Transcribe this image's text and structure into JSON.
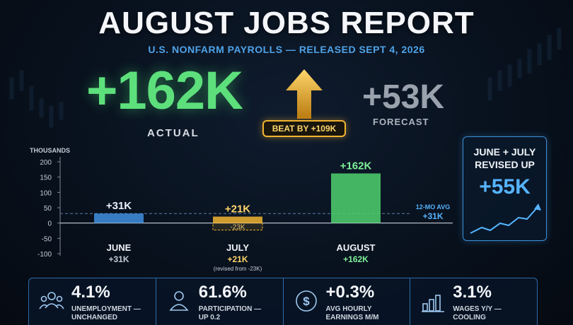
{
  "title": "AUGUST JOBS REPORT",
  "subtitle": "U.S. NONFARM PAYROLLS — RELEASED SEPT 4, 2026",
  "headline": {
    "actual_value": "+162K",
    "actual_label": "ACTUAL",
    "forecast_value": "+53K",
    "forecast_label": "FORECAST",
    "beat_badge": "BEAT BY +109K"
  },
  "colors": {
    "green": "#5de07c",
    "blue": "#4fa3e8",
    "gold": "#f2b431",
    "gray": "#9aa2ad"
  },
  "chart_data": {
    "type": "bar",
    "ylabel": "THOUSANDS",
    "ylim": [
      -100,
      200
    ],
    "yticks": [
      "200",
      "150",
      "100",
      "50",
      "0",
      "-50",
      "-100"
    ],
    "grid": false,
    "categories": [
      "JUNE",
      "JULY",
      "AUGUST"
    ],
    "values": [
      31,
      21,
      162
    ],
    "bar_labels": [
      "+31K",
      "+21K",
      "+162K"
    ],
    "category_sublabels": [
      "+31K",
      "+21K",
      "+162K"
    ],
    "bar_colors": [
      "#3f8fe0",
      "#f2b431",
      "#4fd16f"
    ],
    "prior_value_july": -23,
    "prior_label_july": "-23K",
    "revision_note_july": "(revised from -23K)",
    "reference_line": {
      "value": 31,
      "label_line1": "12-MO AVG",
      "label_line2": "+31K"
    }
  },
  "revision_box": {
    "title_line1": "JUNE + JULY",
    "title_line2": "REVISED UP",
    "value": "+55K",
    "trend_icon": "rising-trend-arrow-icon"
  },
  "stats": [
    {
      "icon": "people-group-icon",
      "value": "4.1%",
      "label_line1": "UNEMPLOYMENT —",
      "label_line2": "UNCHANGED"
    },
    {
      "icon": "person-icon",
      "value": "61.6%",
      "label_line1": "PARTICIPATION —",
      "label_line2": "UP 0.2"
    },
    {
      "icon": "dollar-coin-icon",
      "value": "+0.3%",
      "label_line1": "AVG HOURLY",
      "label_line2": "EARNINGS M/M"
    },
    {
      "icon": "bar-chart-icon",
      "value": "3.1%",
      "label_line1": "WAGES Y/Y —",
      "label_line2": "COOLING"
    }
  ]
}
